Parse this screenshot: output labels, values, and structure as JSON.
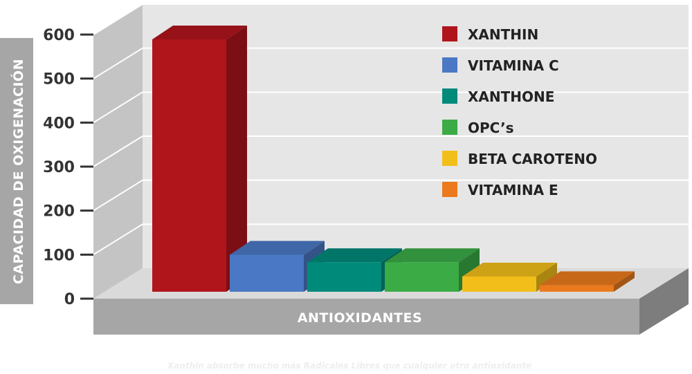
{
  "chart_data": {
    "type": "bar",
    "categories": [
      "XANTHIN",
      "VITAMINA C",
      "XANTHONE",
      "OPC’s",
      "BETA CAROTENO",
      "VITAMINA E"
    ],
    "values": [
      580,
      85,
      68,
      68,
      35,
      15
    ],
    "colors": [
      "#b0151c",
      "#4a78c4",
      "#008a7a",
      "#3bab46",
      "#f2be1a",
      "#ea7a1d"
    ],
    "ylim": [
      0,
      600
    ],
    "yticks": [
      0,
      100,
      200,
      300,
      400,
      500,
      600
    ],
    "ylabel": "CAPACIDAD DE OXIGENACIÓN",
    "xlabel": "ANTIOXIDANTES",
    "legend_position": "top-right",
    "grid": true,
    "style": "3d"
  },
  "caption": "Xanthin absorbe mucho más Radicales Libres que cualquier otro antioxidante"
}
